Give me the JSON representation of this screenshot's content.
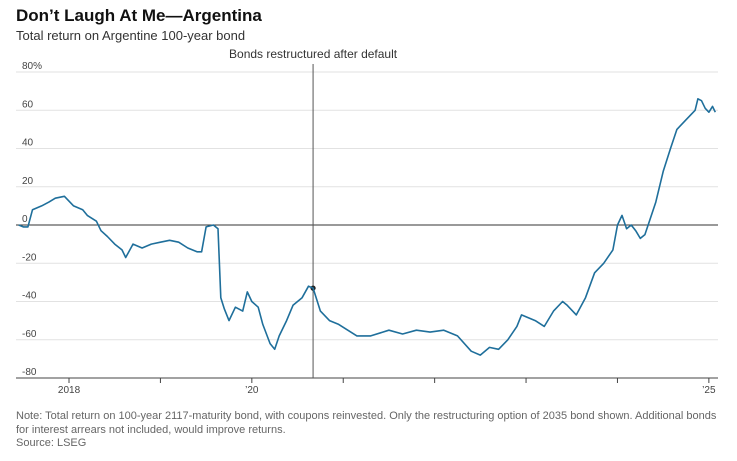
{
  "header": {
    "title": "Don’t Laugh At Me—Argentina",
    "subtitle": "Total return on Argentine 100-year bond"
  },
  "footer": {
    "note": "Note: Total return on 100-year 2117-maturity bond, with coupons reinvested. Only the restructuring option of 2035 bond shown. Additional bonds for interest arrears not included, would improve returns.",
    "source": "Source: LSEG"
  },
  "chart_data": {
    "type": "line",
    "title": "Don’t Laugh At Me—Argentina",
    "subtitle": "Total return on Argentine 100-year bond",
    "ylabel": "",
    "xlabel": "",
    "ylim": [
      -80,
      80
    ],
    "xlim": [
      2017.42,
      2025.1
    ],
    "y_ticks": [
      {
        "value": 80,
        "label": "80%"
      },
      {
        "value": 60,
        "label": "60"
      },
      {
        "value": 40,
        "label": "40"
      },
      {
        "value": 20,
        "label": "20"
      },
      {
        "value": 0,
        "label": "0"
      },
      {
        "value": -20,
        "label": "-20"
      },
      {
        "value": -40,
        "label": "-40"
      },
      {
        "value": -60,
        "label": "-60"
      },
      {
        "value": -80,
        "label": "-80"
      }
    ],
    "x_ticks": [
      {
        "value": 2018,
        "label": "2018"
      },
      {
        "value": 2019,
        "label": ""
      },
      {
        "value": 2020,
        "label": "’20"
      },
      {
        "value": 2021,
        "label": ""
      },
      {
        "value": 2022,
        "label": ""
      },
      {
        "value": 2023,
        "label": ""
      },
      {
        "value": 2024,
        "label": ""
      },
      {
        "value": 2025,
        "label": "’25"
      }
    ],
    "grid": "horizontal",
    "annotation": {
      "label": "Bonds restructured after default",
      "x": 2020.67,
      "y": -33
    },
    "series": [
      {
        "color": "#1f6f9b",
        "points": [
          [
            2017.45,
            0
          ],
          [
            2017.5,
            -1
          ],
          [
            2017.55,
            -1
          ],
          [
            2017.6,
            8
          ],
          [
            2017.7,
            10
          ],
          [
            2017.78,
            12
          ],
          [
            2017.85,
            14
          ],
          [
            2017.95,
            15
          ],
          [
            2018.05,
            10
          ],
          [
            2018.15,
            8
          ],
          [
            2018.2,
            5
          ],
          [
            2018.3,
            2
          ],
          [
            2018.35,
            -3
          ],
          [
            2018.42,
            -6
          ],
          [
            2018.5,
            -10
          ],
          [
            2018.58,
            -13
          ],
          [
            2018.62,
            -17
          ],
          [
            2018.7,
            -10
          ],
          [
            2018.8,
            -12
          ],
          [
            2018.9,
            -10
          ],
          [
            2019.0,
            -9
          ],
          [
            2019.1,
            -8
          ],
          [
            2019.2,
            -9
          ],
          [
            2019.3,
            -12
          ],
          [
            2019.4,
            -14
          ],
          [
            2019.45,
            -14
          ],
          [
            2019.5,
            -1
          ],
          [
            2019.58,
            0
          ],
          [
            2019.63,
            -2
          ],
          [
            2019.66,
            -38
          ],
          [
            2019.7,
            -44
          ],
          [
            2019.75,
            -50
          ],
          [
            2019.82,
            -43
          ],
          [
            2019.9,
            -45
          ],
          [
            2019.95,
            -35
          ],
          [
            2020.0,
            -40
          ],
          [
            2020.07,
            -43
          ],
          [
            2020.12,
            -52
          ],
          [
            2020.2,
            -62
          ],
          [
            2020.25,
            -65
          ],
          [
            2020.3,
            -58
          ],
          [
            2020.38,
            -50
          ],
          [
            2020.45,
            -42
          ],
          [
            2020.55,
            -38
          ],
          [
            2020.62,
            -32
          ],
          [
            2020.67,
            -33
          ],
          [
            2020.75,
            -45
          ],
          [
            2020.85,
            -50
          ],
          [
            2020.95,
            -52
          ],
          [
            2021.05,
            -55
          ],
          [
            2021.15,
            -58
          ],
          [
            2021.3,
            -58
          ],
          [
            2021.5,
            -55
          ],
          [
            2021.65,
            -57
          ],
          [
            2021.8,
            -55
          ],
          [
            2021.95,
            -56
          ],
          [
            2022.1,
            -55
          ],
          [
            2022.25,
            -58
          ],
          [
            2022.4,
            -66
          ],
          [
            2022.5,
            -68
          ],
          [
            2022.6,
            -64
          ],
          [
            2022.7,
            -65
          ],
          [
            2022.8,
            -60
          ],
          [
            2022.9,
            -53
          ],
          [
            2022.95,
            -47
          ],
          [
            2023.1,
            -50
          ],
          [
            2023.2,
            -53
          ],
          [
            2023.3,
            -45
          ],
          [
            2023.4,
            -40
          ],
          [
            2023.45,
            -42
          ],
          [
            2023.55,
            -47
          ],
          [
            2023.65,
            -38
          ],
          [
            2023.75,
            -25
          ],
          [
            2023.85,
            -20
          ],
          [
            2023.95,
            -13
          ],
          [
            2024.0,
            0
          ],
          [
            2024.05,
            5
          ],
          [
            2024.1,
            -2
          ],
          [
            2024.15,
            0
          ],
          [
            2024.2,
            -3
          ],
          [
            2024.25,
            -7
          ],
          [
            2024.3,
            -5
          ],
          [
            2024.35,
            2
          ],
          [
            2024.42,
            12
          ],
          [
            2024.5,
            28
          ],
          [
            2024.58,
            40
          ],
          [
            2024.65,
            50
          ],
          [
            2024.75,
            55
          ],
          [
            2024.85,
            60
          ],
          [
            2024.88,
            66
          ],
          [
            2024.92,
            65
          ],
          [
            2024.96,
            61
          ],
          [
            2025.0,
            59
          ],
          [
            2025.04,
            62
          ],
          [
            2025.07,
            59
          ]
        ]
      }
    ]
  }
}
